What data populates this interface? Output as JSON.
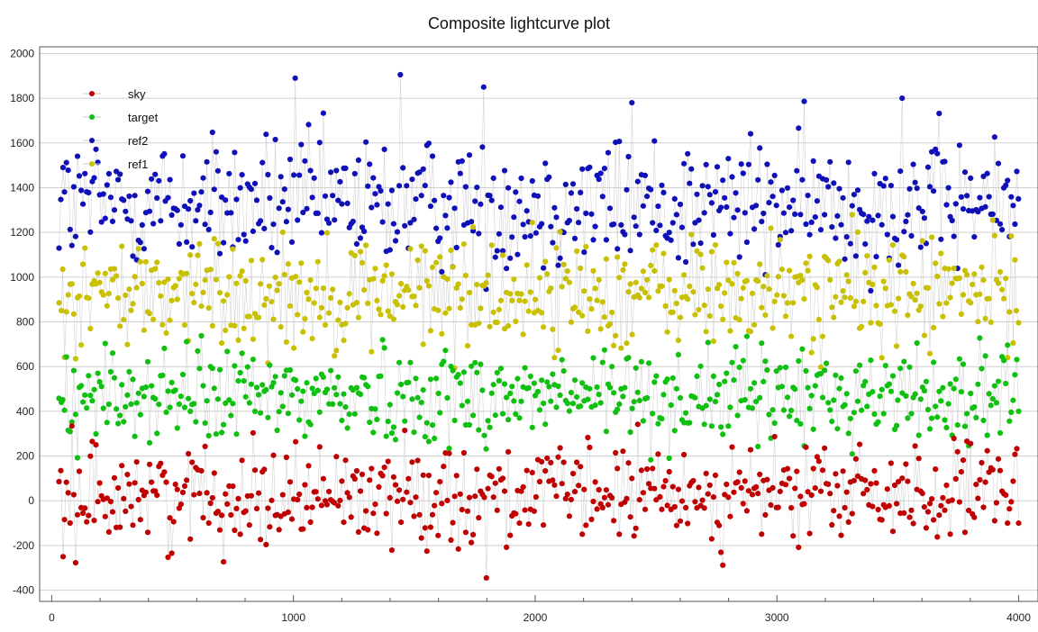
{
  "chart_data": {
    "type": "scatter",
    "title": "Composite lightcurve plot",
    "xlabel": "",
    "ylabel": "",
    "xlim": [
      -50,
      4080
    ],
    "ylim": [
      -450,
      2030
    ],
    "x_ticks": [
      0,
      1000,
      2000,
      3000,
      4000
    ],
    "y_ticks": [
      -400,
      -200,
      0,
      200,
      400,
      600,
      800,
      1000,
      1200,
      1400,
      1600,
      1800,
      2000
    ],
    "grid": true,
    "legend_position": "top-left",
    "line_color": "#c8c8c8",
    "x_range": [
      30,
      4000
    ],
    "series": [
      {
        "name": "ref2",
        "color": "#1010b8",
        "mean": 1330,
        "spread": 150,
        "min": 820,
        "max": 1910,
        "samples": [
          [
            47,
            1490
          ],
          [
            470,
            1340
          ],
          [
            1007,
            1890
          ],
          [
            1442,
            1905
          ],
          [
            1787,
            1850
          ],
          [
            2400,
            1780
          ],
          [
            3518,
            1800
          ],
          [
            3999,
            1350
          ]
        ]
      },
      {
        "name": "ref1",
        "color": "#c8c000",
        "mean": 930,
        "spread": 130,
        "min": 560,
        "max": 1400,
        "samples": [
          [
            40,
            850
          ],
          [
            900,
            960
          ],
          [
            2000,
            900
          ],
          [
            3000,
            920
          ],
          [
            3990,
            850
          ]
        ]
      },
      {
        "name": "target",
        "color": "#10c010",
        "mean": 470,
        "spread": 110,
        "min": 150,
        "max": 860,
        "samples": [
          [
            40,
            440
          ],
          [
            1600,
            480
          ],
          [
            2000,
            470
          ],
          [
            3500,
            450
          ],
          [
            4000,
            400
          ]
        ]
      },
      {
        "name": "sky",
        "color": "#c00000",
        "mean": 30,
        "spread": 110,
        "min": -350,
        "max": 360,
        "samples": [
          [
            47,
            -250
          ],
          [
            1798,
            -345
          ],
          [
            2400,
            100
          ],
          [
            4000,
            -100
          ]
        ]
      }
    ],
    "legend": [
      {
        "label": "sky",
        "color": "#c00000"
      },
      {
        "label": "target",
        "color": "#10c010"
      },
      {
        "label": "ref2",
        "color": "#1010b8"
      },
      {
        "label": "ref1",
        "color": "#c8c000"
      }
    ]
  }
}
